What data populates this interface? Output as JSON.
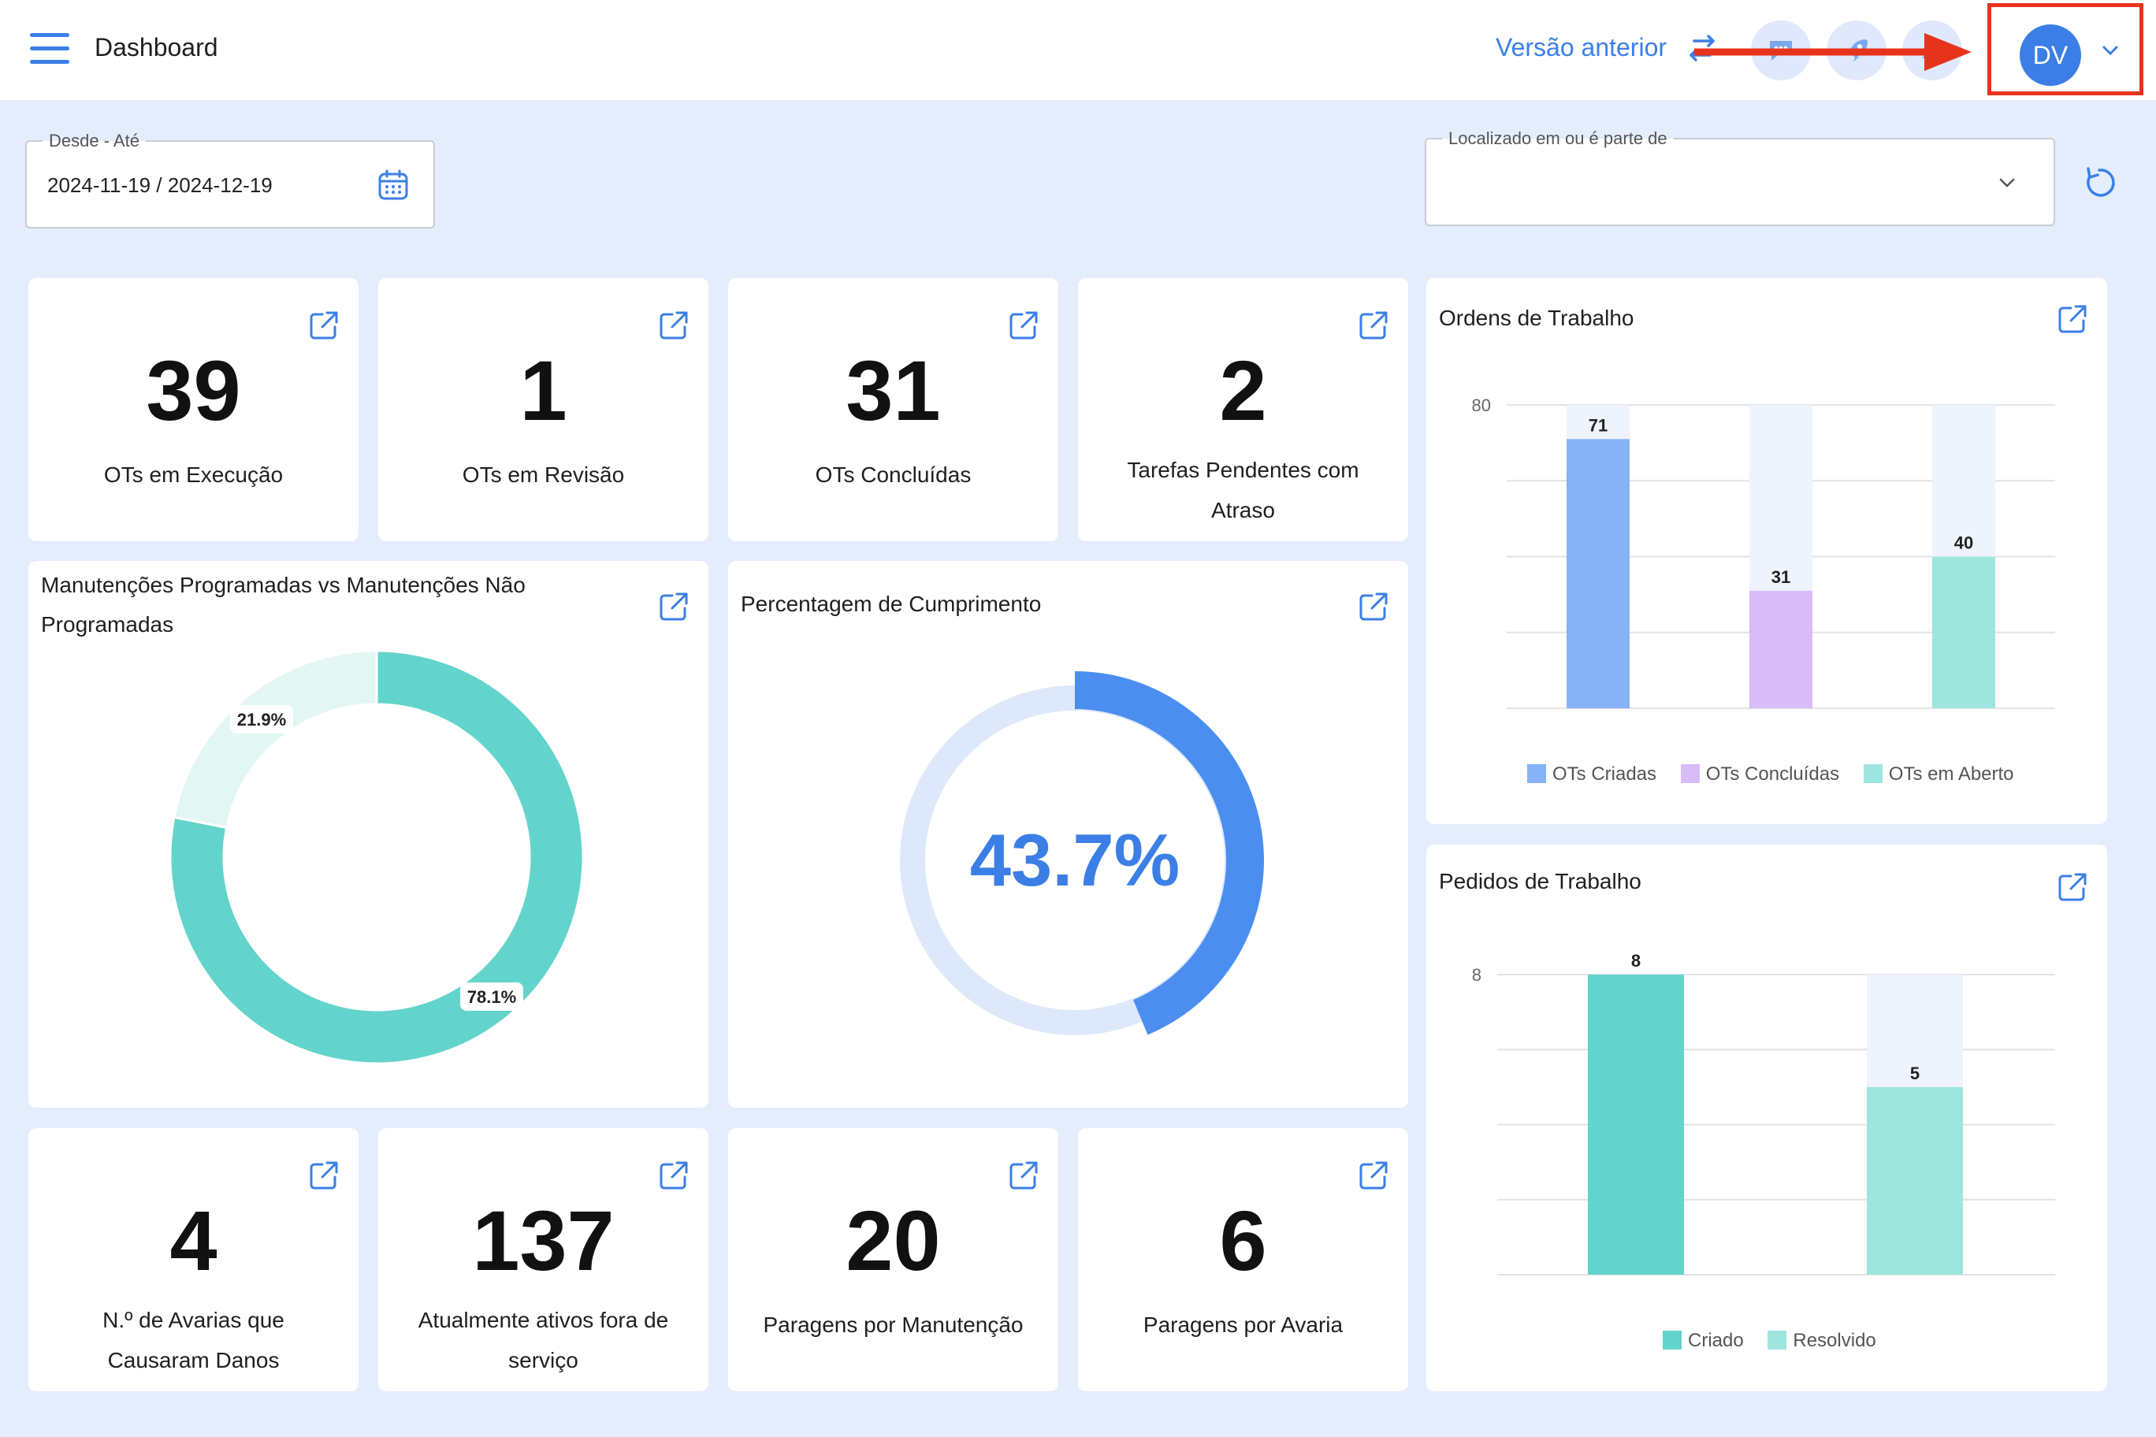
{
  "header": {
    "title": "Dashboard",
    "prev_version_label": "Versão anterior",
    "avatar_initials": "DV"
  },
  "filters": {
    "date_range": {
      "label": "Desde - Até",
      "value": "2024-11-19 / 2024-12-19"
    },
    "location": {
      "label": "Localizado em ou é parte de",
      "value": ""
    }
  },
  "kpis_top": [
    {
      "value": "39",
      "label": "OTs em Execução"
    },
    {
      "value": "1",
      "label": "OTs em Revisão"
    },
    {
      "value": "31",
      "label": "OTs Concluídas"
    },
    {
      "value": "2",
      "label": "Tarefas Pendentes com Atraso"
    }
  ],
  "kpis_bottom": [
    {
      "value": "4",
      "label": "N.º de Avarias que Causaram Danos"
    },
    {
      "value": "137",
      "label": "Atualmente ativos fora de serviço"
    },
    {
      "value": "20",
      "label": "Paragens por Manutenção"
    },
    {
      "value": "6",
      "label": "Paragens por Avaria"
    }
  ],
  "chart_data": [
    {
      "type": "pie",
      "title": "Manutenções Programadas vs Manutenções Não Programadas",
      "slices": [
        {
          "value": 78.1,
          "label": "78.1%",
          "color": "#63d4cb"
        },
        {
          "value": 21.9,
          "label": "21.9%",
          "color": "#e2f6f4"
        }
      ]
    },
    {
      "type": "pie",
      "title": "Percentagem de Cumprimento",
      "value": 43.7,
      "label": "43.7%",
      "color": "#4b8ef0",
      "track_color": "#dde9fb"
    },
    {
      "type": "bar",
      "title": "Ordens de Trabalho",
      "categories": [
        "OTs Criadas",
        "OTs Concluídas",
        "OTs em Aberto"
      ],
      "values": [
        71,
        31,
        40
      ],
      "colors": [
        "#86b2f6",
        "#d8bcf8",
        "#9ee6dd"
      ],
      "ylim": [
        0,
        80
      ],
      "ytick_label": "80",
      "legend": [
        "OTs Criadas",
        "OTs Concluídas",
        "OTs em Aberto"
      ]
    },
    {
      "type": "bar",
      "title": "Pedidos de Trabalho",
      "categories": [
        "Criado",
        "Resolvido"
      ],
      "values": [
        8,
        5
      ],
      "colors": [
        "#63d4cb",
        "#9ee6dd"
      ],
      "ylim": [
        0,
        8
      ],
      "ytick_label": "8",
      "legend": [
        "Criado",
        "Resolvido"
      ]
    }
  ]
}
